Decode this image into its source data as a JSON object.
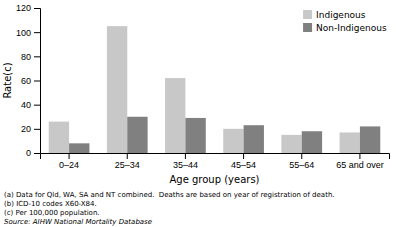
{
  "chart_data": {
    "type": "bar",
    "categories": [
      "0–24",
      "25–34",
      "35–44",
      "45–54",
      "55–64",
      "65 and over"
    ],
    "series": [
      {
        "name": "Indigenous",
        "color": "#c8c8c8",
        "values": [
          26,
          105,
          62,
          20,
          15,
          17
        ]
      },
      {
        "name": "Non-Indigenous",
        "color": "#808080",
        "values": [
          8,
          30,
          29,
          23,
          18,
          22
        ]
      }
    ],
    "xlabel": "Age group (years)",
    "ylabel": "Rate(c)",
    "ylim": [
      0,
      120
    ],
    "yticks": [
      0,
      20,
      40,
      60,
      80,
      100,
      120
    ],
    "grid": false,
    "legend": "upper right",
    "annotations": [
      "(a) Data for Qld, WA, SA and NT combined.  Deaths are based on year of registration of death.",
      "(b) ICD-10 codes X60-X84.",
      "(c) Per 100,000 population.",
      "Source: AIHW National Mortality Database"
    ]
  }
}
